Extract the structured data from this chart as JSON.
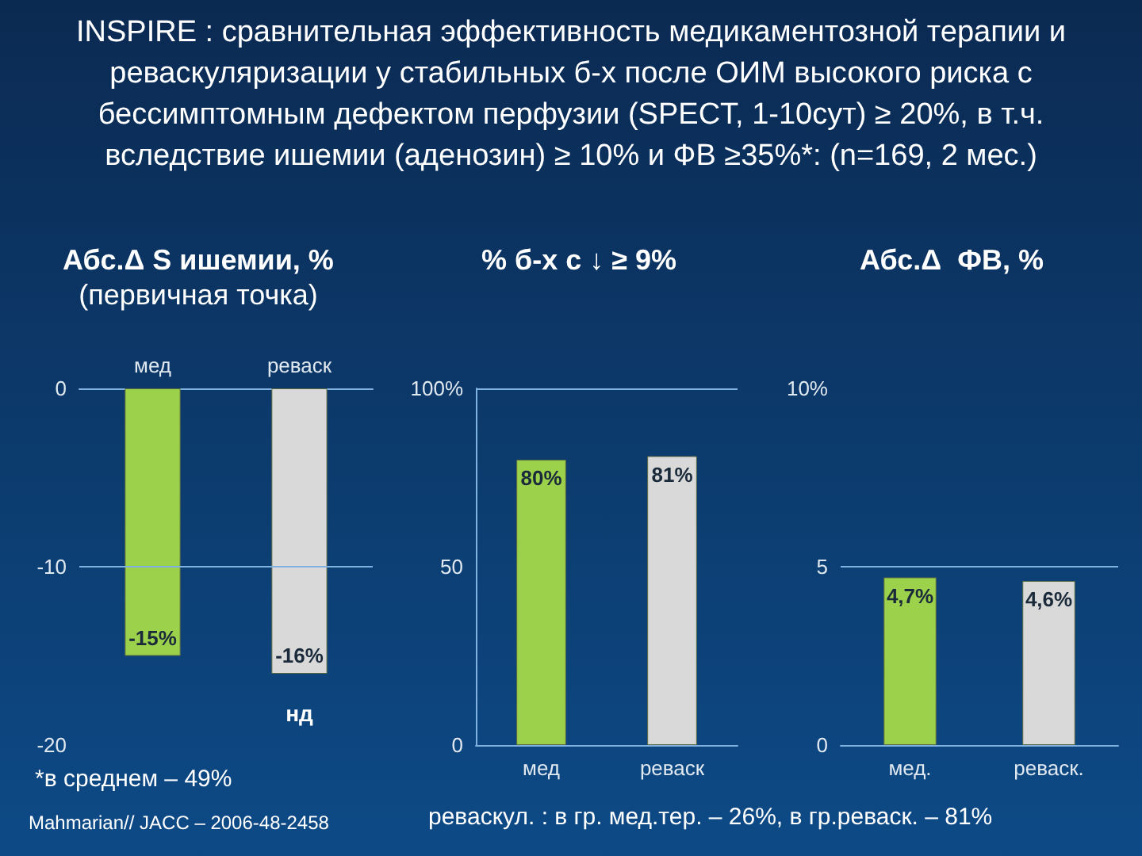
{
  "chart_data": [
    {
      "type": "other",
      "title": "INSPIRE : сравнительная эффективность  медикаментозной терапии и реваскуляризации у стабильных б-х после ОИМ высокого риска с бессимптомным дефектом перфузии (SPECT, 1-10сут) ≥ 20%, в т.ч. вследствие ишемии (аденозин) ≥ 10% и ФВ ≥35%*: (n=169, 2 мес.)"
    },
    {
      "type": "bar",
      "title": "Абс.Δ S ишемии, %",
      "subtitle": "(первичная точка)",
      "categories": [
        "мед",
        "реваск"
      ],
      "values": [
        -15,
        -16
      ],
      "colors": [
        "#9bd14b",
        "#d9d9d9"
      ],
      "value_labels": [
        "-15%",
        "-16%"
      ],
      "ylim": [
        -20,
        0
      ],
      "yticks": [
        -20,
        -10,
        0
      ],
      "grid": false,
      "ref_lines": [
        {
          "axis": "y",
          "value": -10
        }
      ],
      "annotations": [
        "нд",
        "*в среднем – 49%",
        "Mahmarian// JACC – 2006-48-2458"
      ]
    },
    {
      "type": "bar",
      "title": "% б-х с ↓ ≥ 9%",
      "categories": [
        "мед",
        "реваск"
      ],
      "values": [
        80,
        81
      ],
      "colors": [
        "#9bd14b",
        "#d9d9d9"
      ],
      "value_labels": [
        "80%",
        "81%"
      ],
      "ylim": [
        0,
        100
      ],
      "yticks": [
        0,
        50,
        {
          "value": 100,
          "label": "100%"
        }
      ],
      "grid": false,
      "ref_lines": [
        {
          "axis": "y",
          "value": 100
        }
      ]
    },
    {
      "type": "bar",
      "title": "Абс.Δ  ФВ, %",
      "categories": [
        "мед.",
        "реваск."
      ],
      "values": [
        4.7,
        4.6
      ],
      "colors": [
        "#9bd14b",
        "#d9d9d9"
      ],
      "value_labels": [
        "4,7%",
        "4,6%"
      ],
      "ylim": [
        0,
        10
      ],
      "yticks": [
        0,
        5,
        {
          "value": 10,
          "label": "10%"
        }
      ],
      "grid": false,
      "ref_lines": [
        {
          "axis": "y",
          "value": 5
        }
      ],
      "annotations": [
        "реваскул. : в гр. мед.тер. – 26%, в гр.реваск. – 81%"
      ]
    }
  ]
}
